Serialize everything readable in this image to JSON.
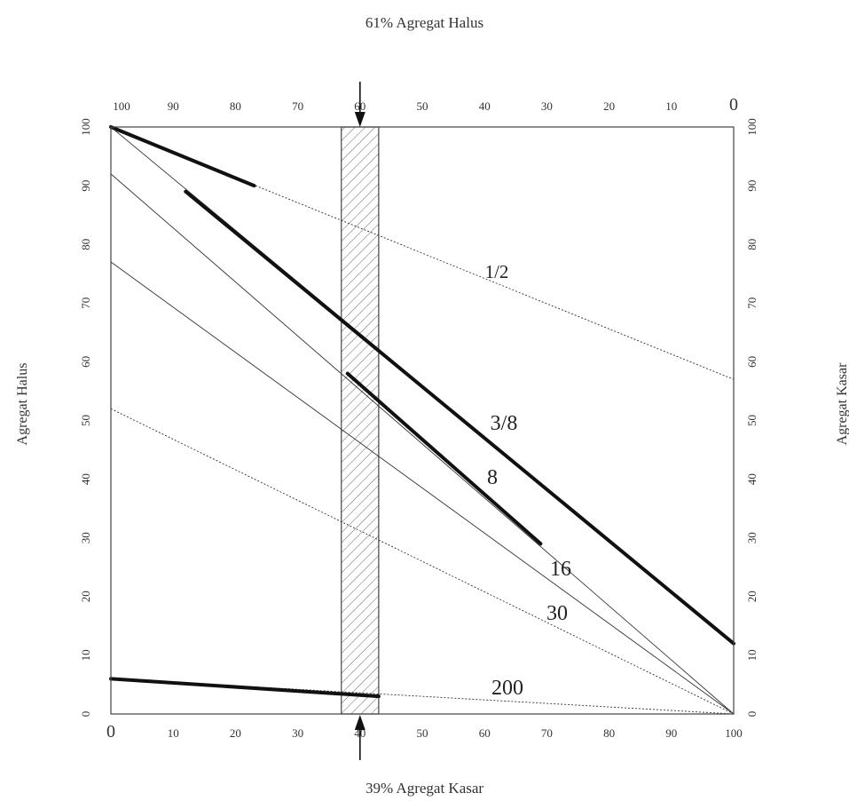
{
  "header": {
    "top_label": "61% Agregat Halus",
    "bottom_label": "39% Agregat Kasar",
    "left_axis_label": "Agregat Halus",
    "right_axis_label": "Agregat Kasar"
  },
  "chart_data": {
    "type": "line",
    "title": "",
    "x_bottom": {
      "label": "39% Agregat Kasar",
      "range": [
        0,
        100
      ],
      "ticks": [
        "0",
        "10",
        "20",
        "30",
        "40",
        "50",
        "60",
        "70",
        "80",
        "90",
        "100"
      ]
    },
    "x_top": {
      "label": "61% Agregat Halus",
      "range": [
        100,
        0
      ],
      "ticks": [
        "100",
        "90",
        "80",
        "70",
        "60",
        "50",
        "40",
        "30",
        "20",
        "10",
        "0"
      ]
    },
    "y_left": {
      "label": "Agregat Halus",
      "range": [
        0,
        100
      ],
      "ticks": [
        "0",
        "10",
        "20",
        "30",
        "40",
        "50",
        "60",
        "70",
        "80",
        "90",
        "100"
      ]
    },
    "y_right": {
      "label": "Agregat Kasar",
      "range": [
        0,
        100
      ],
      "ticks": [
        "0",
        "10",
        "20",
        "30",
        "40",
        "50",
        "60",
        "70",
        "80",
        "90",
        "100"
      ]
    },
    "grid": false,
    "series": [
      {
        "name": "1/2",
        "left": 100,
        "right": 57,
        "spec_segment": [
          0,
          100,
          23,
          90
        ]
      },
      {
        "name": "3/8",
        "left": 100,
        "right": 12,
        "spec_segment": [
          12,
          89,
          100,
          12
        ]
      },
      {
        "name": "8",
        "left": 77,
        "right": 0,
        "spec_segment": [
          38,
          58,
          69,
          29
        ]
      },
      {
        "name": "16",
        "left": 92,
        "right": 0
      },
      {
        "name": "30",
        "left": 52,
        "right": 0
      },
      {
        "name": "200",
        "left": 6,
        "right": 0,
        "spec_segment": [
          0,
          6,
          43,
          3
        ]
      }
    ],
    "selected_band": {
      "x_range": [
        37,
        43
      ],
      "chosen_x": 40,
      "hatched": true
    },
    "arrows": [
      {
        "position": "top",
        "x": 40
      },
      {
        "position": "bottom",
        "x": 40
      }
    ],
    "colors": {
      "line": "#333333",
      "thick_line": "#111111",
      "hatch": "#666666",
      "frame": "#444444"
    }
  }
}
